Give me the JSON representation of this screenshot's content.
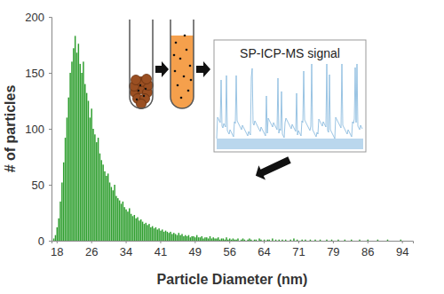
{
  "chart_data": {
    "type": "bar",
    "x_label": "Particle Diameter (nm)",
    "y_label": "# of particles",
    "annotations": [
      "SP-ICP-MS signal"
    ],
    "categories": [
      null,
      null,
      null,
      "18",
      null,
      null,
      null,
      null,
      null,
      null,
      null,
      null,
      null,
      null,
      null,
      null,
      null,
      null,
      null,
      null,
      null,
      null,
      null,
      null,
      "26",
      null,
      null,
      null,
      null,
      null,
      null,
      null,
      null,
      null,
      null,
      null,
      null,
      null,
      null,
      null,
      null,
      null,
      null,
      null,
      null,
      "34",
      null,
      null,
      null,
      null,
      null,
      null,
      null,
      null,
      null,
      null,
      null,
      null,
      null,
      null,
      null,
      null,
      null,
      null,
      null,
      null,
      "41",
      null,
      null,
      null,
      null,
      null,
      null,
      null,
      null,
      null,
      null,
      null,
      null,
      null,
      null,
      null,
      null,
      null,
      null,
      null,
      null,
      "49",
      null,
      null,
      null,
      null,
      null,
      null,
      null,
      null,
      null,
      null,
      null,
      null,
      null,
      null,
      null,
      null,
      null,
      null,
      null,
      null,
      "56",
      null,
      null,
      null,
      null,
      null,
      null,
      null,
      null,
      null,
      null,
      null,
      null,
      null,
      null,
      null,
      null,
      null,
      null,
      null,
      null,
      "64",
      null,
      null,
      null,
      null,
      null,
      null,
      null,
      null,
      null,
      null,
      null,
      null,
      null,
      null,
      null,
      null,
      null,
      null,
      null,
      null,
      "71",
      null,
      null,
      null,
      null,
      null,
      null,
      null,
      null,
      null,
      null,
      null,
      null,
      null,
      null,
      null,
      null,
      null,
      null,
      null,
      null,
      "79",
      null,
      null,
      null,
      null,
      null,
      null,
      null,
      null,
      null,
      null,
      null,
      null,
      null,
      null,
      null,
      null,
      null,
      null,
      null,
      null,
      "86",
      null,
      null,
      null,
      null,
      null,
      null,
      null,
      null,
      null,
      null,
      null,
      null,
      null,
      null,
      null,
      null,
      null,
      null,
      null,
      null,
      "94",
      null,
      null,
      null,
      null,
      null,
      null
    ],
    "values": [
      0,
      2,
      5,
      12,
      20,
      35,
      52,
      70,
      92,
      110,
      128,
      150,
      160,
      172,
      183,
      168,
      176,
      158,
      150,
      160,
      140,
      132,
      125,
      110,
      118,
      100,
      95,
      88,
      92,
      78,
      72,
      68,
      62,
      58,
      60,
      52,
      48,
      45,
      50,
      40,
      38,
      36,
      33,
      35,
      30,
      28,
      26,
      29,
      24,
      22,
      23,
      20,
      21,
      18,
      19,
      17,
      15,
      16,
      14,
      15,
      12,
      13,
      11,
      12,
      10,
      11,
      9,
      10,
      8,
      9,
      8,
      7,
      8,
      6,
      7,
      6,
      5,
      7,
      5,
      6,
      4,
      5,
      4,
      5,
      3,
      4,
      4,
      3,
      5,
      3,
      3,
      4,
      2,
      3,
      3,
      2,
      4,
      2,
      3,
      2,
      2,
      3,
      1,
      2,
      2,
      1,
      3,
      1,
      2,
      1,
      2,
      1,
      1,
      2,
      0,
      1,
      2,
      1,
      0,
      1,
      2,
      1,
      0,
      1,
      1,
      0,
      2,
      1,
      0,
      1,
      0,
      1,
      1,
      0,
      2,
      0,
      1,
      0,
      1,
      0,
      1,
      0,
      1,
      0,
      0,
      1,
      0,
      2,
      0,
      1,
      0,
      0,
      1,
      0,
      1,
      0,
      0,
      1,
      0,
      0,
      1,
      0,
      0,
      1,
      0,
      0,
      0,
      1,
      0,
      0,
      1,
      0,
      0,
      0,
      1,
      0,
      0,
      0,
      1,
      0,
      0,
      0,
      1,
      0,
      0,
      0,
      0,
      1,
      0,
      0,
      0,
      0,
      1,
      0,
      0,
      0,
      0,
      0,
      1,
      0,
      0,
      0,
      0,
      0,
      1,
      0,
      0,
      0,
      0,
      0,
      0,
      0,
      1,
      0,
      0,
      0,
      0,
      0,
      0,
      0
    ],
    "color": "#2e9e2e",
    "ylim": [
      0,
      200
    ],
    "yticks": [
      0,
      50,
      100,
      150,
      200
    ],
    "grid": false
  }
}
